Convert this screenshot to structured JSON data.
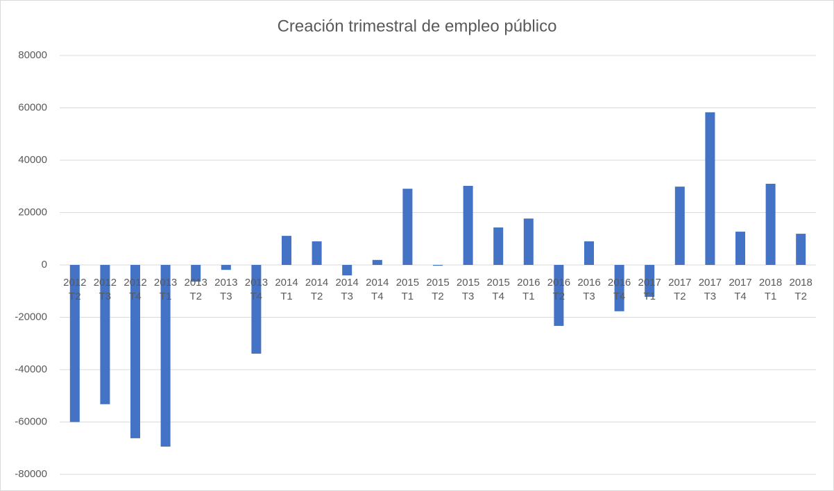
{
  "chart_data": {
    "type": "bar",
    "title": "Creación trimestral de empleo público",
    "categories": [
      "2012 T2",
      "2012 T3",
      "2012 T4",
      "2013 T1",
      "2013 T2",
      "2013 T3",
      "2013 T4",
      "2014 T1",
      "2014 T2",
      "2014 T3",
      "2014 T4",
      "2015 T1",
      "2015 T2",
      "2015 T3",
      "2015 T4",
      "2016 T1",
      "2016 T2",
      "2016 T3",
      "2016 T4",
      "2017 T1",
      "2017 T2",
      "2017 T3",
      "2017 T4",
      "2018 T1",
      "2018 T2"
    ],
    "values": [
      -60000,
      -53200,
      -66200,
      -69400,
      -6400,
      -1900,
      -33900,
      11100,
      9000,
      -4000,
      1900,
      29100,
      -300,
      30200,
      14300,
      17700,
      -23300,
      9000,
      -17700,
      -12200,
      29900,
      58300,
      12700,
      31000,
      11900
    ],
    "color": "#4472c4",
    "ylim": [
      -80000,
      80000
    ],
    "yticks": [
      -80000,
      -60000,
      -40000,
      -20000,
      0,
      20000,
      40000,
      60000,
      80000
    ],
    "grid": true
  }
}
